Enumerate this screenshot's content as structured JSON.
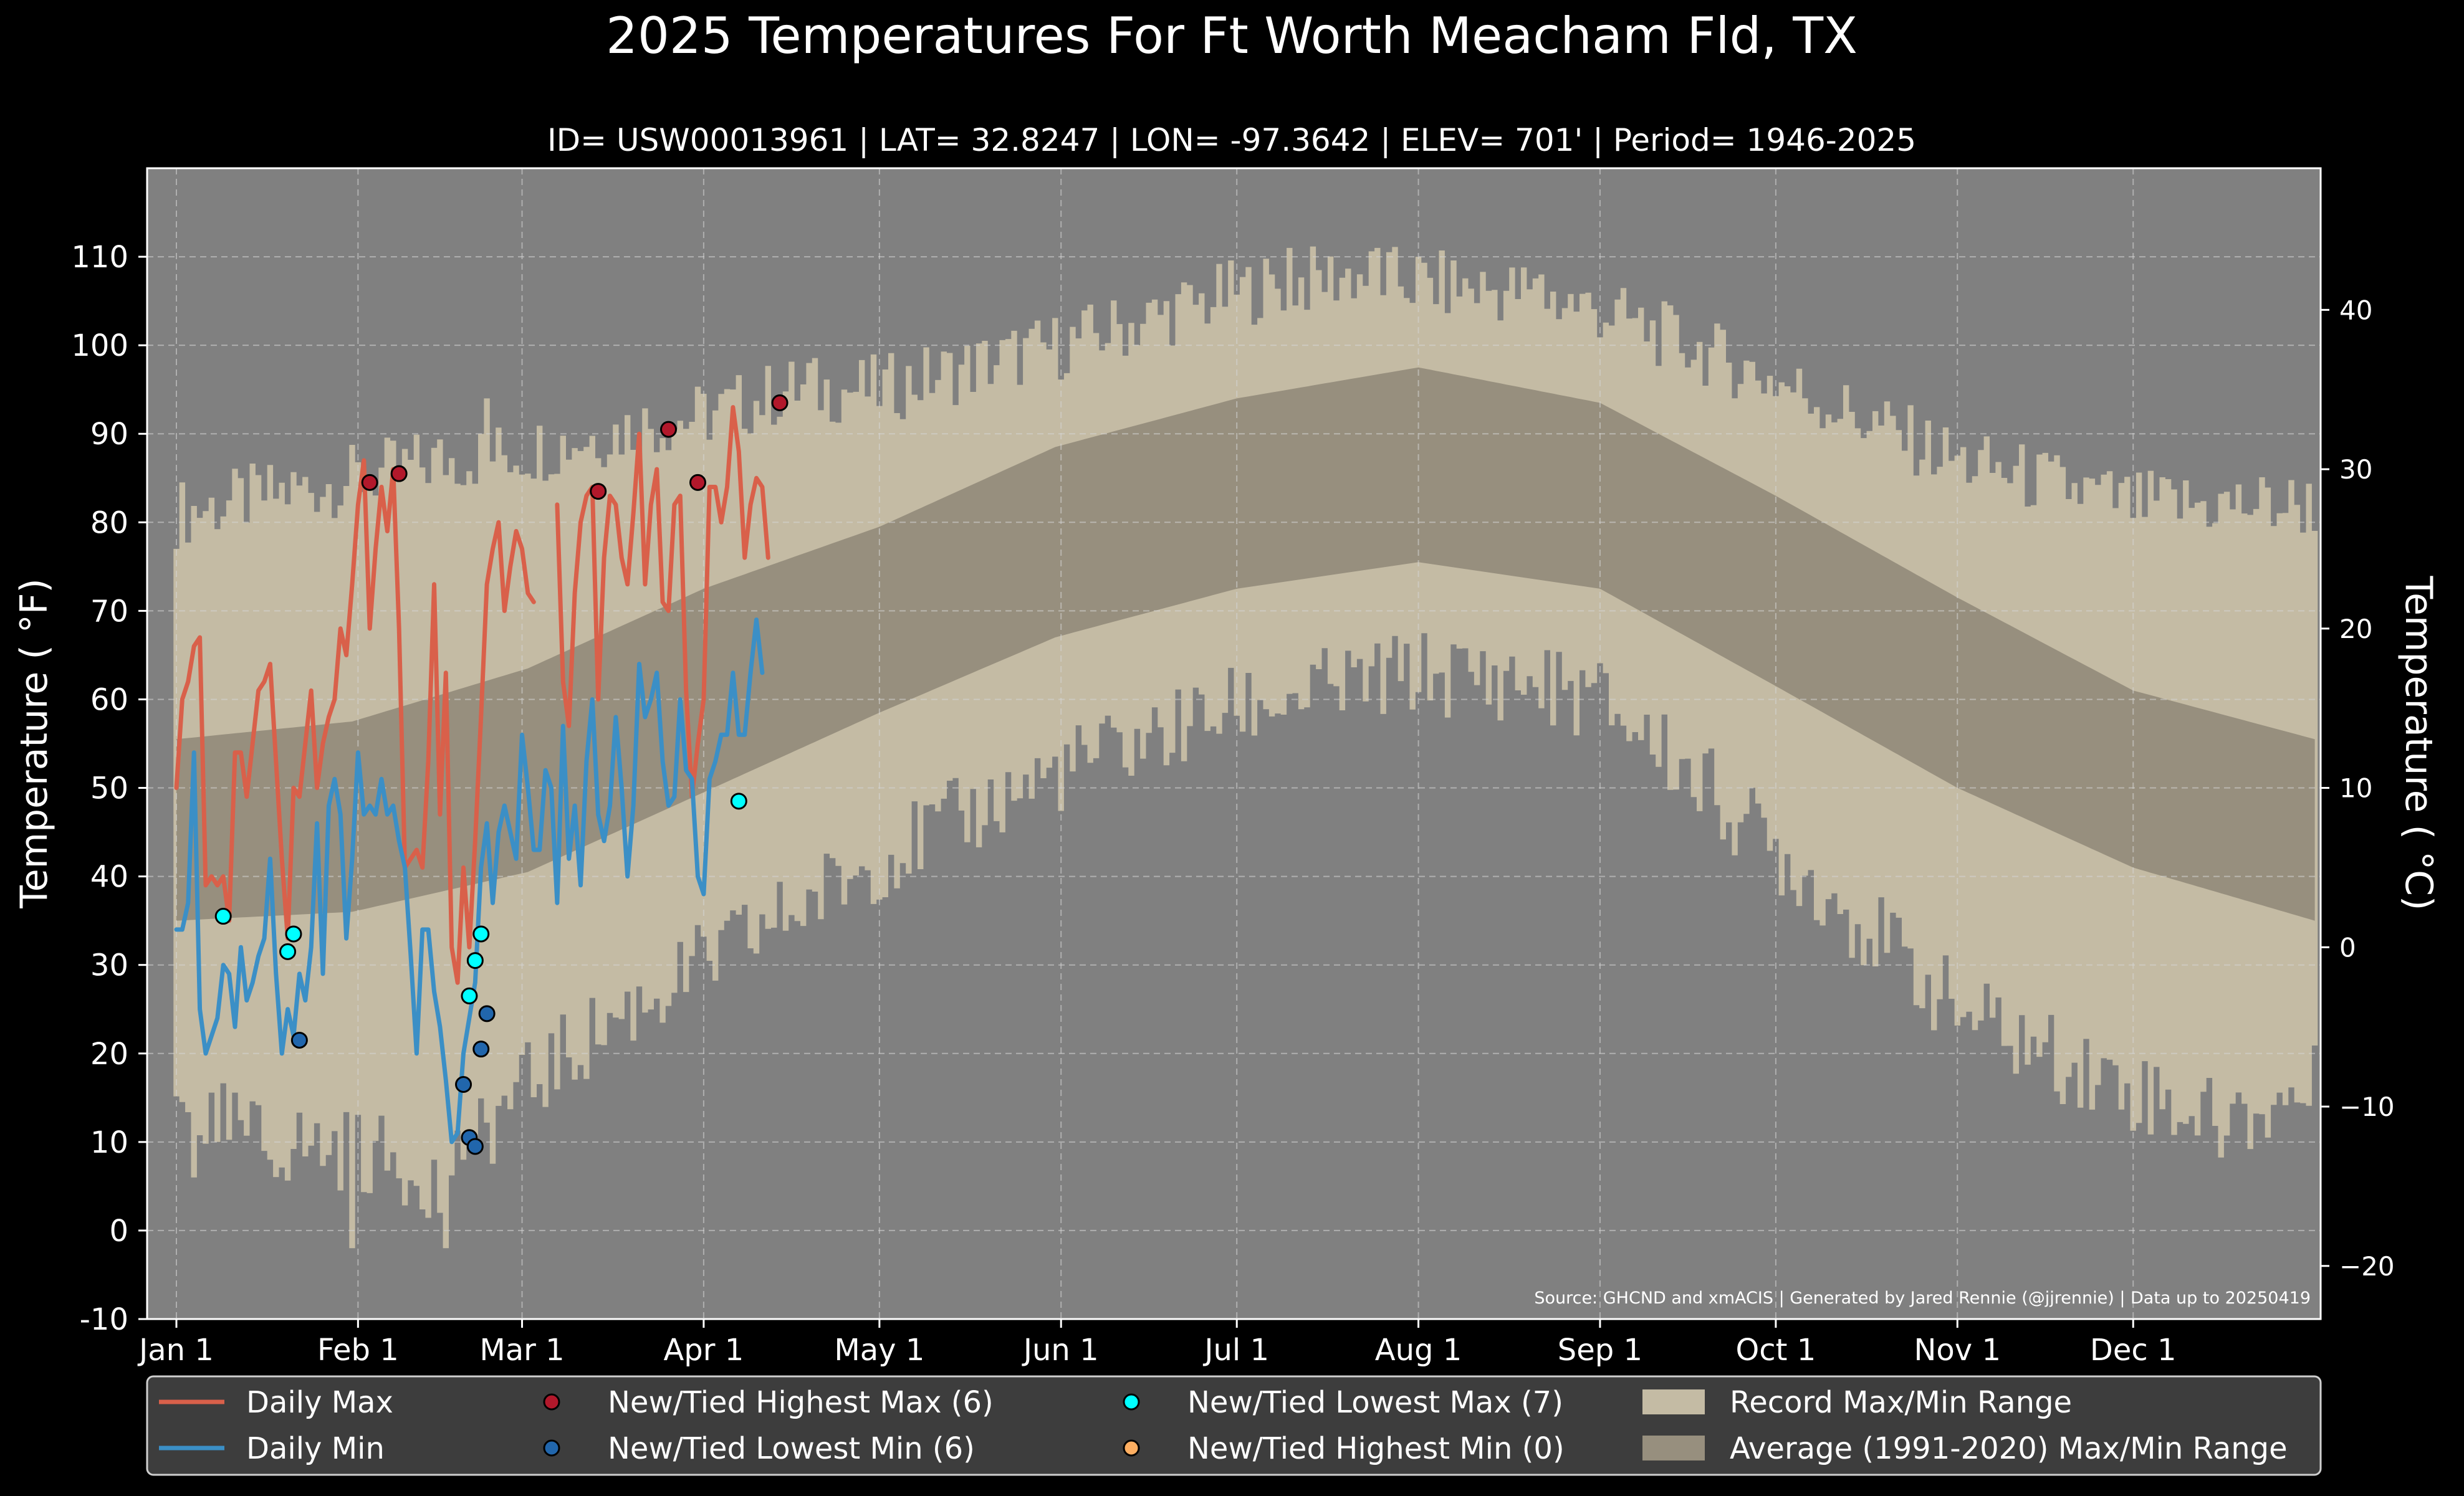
{
  "chart_data": {
    "type": "climate-band-line",
    "title": "2025 Temperatures For Ft Worth Meacham Fld, TX",
    "subtitle": "ID= USW00013961 | LAT= 32.8247 | LON= -97.3642 | ELEV= 701' | Period= 1946-2025",
    "ylabel": "Temperature ( $^\\circ$F)",
    "ylabel_text": "Temperature ( °F)",
    "y2label_text": "Temperature ( °C)",
    "ylim": [
      -10,
      120
    ],
    "y2lim_c": [
      -23.333,
      48.889
    ],
    "yticks": [
      -10,
      0,
      10,
      20,
      30,
      40,
      50,
      60,
      70,
      80,
      90,
      100,
      110
    ],
    "y2ticks": [
      -20,
      -10,
      0,
      10,
      20,
      30,
      40
    ],
    "y2tick_labels": [
      "−20",
      "−10",
      "0",
      "10",
      "20",
      "30",
      "40"
    ],
    "xlim_day": [
      -5,
      366
    ],
    "xticks": [
      {
        "day": 0,
        "label": "Jan 1"
      },
      {
        "day": 31,
        "label": "Feb 1"
      },
      {
        "day": 59,
        "label": "Mar 1"
      },
      {
        "day": 90,
        "label": "Apr 1"
      },
      {
        "day": 120,
        "label": "May 1"
      },
      {
        "day": 151,
        "label": "Jun 1"
      },
      {
        "day": 181,
        "label": "Jul 1"
      },
      {
        "day": 212,
        "label": "Aug 1"
      },
      {
        "day": 243,
        "label": "Sep 1"
      },
      {
        "day": 273,
        "label": "Oct 1"
      },
      {
        "day": 304,
        "label": "Nov 1"
      },
      {
        "day": 334,
        "label": "Dec 1"
      }
    ],
    "grid": true,
    "legend_position": "bottom",
    "source_note": "Source: GHCND and xmACIS | Generated by Jared Rennie (@jjrennie) | Data up to 20250419",
    "colors": {
      "background": "#808080",
      "record_band": "#c4bba4",
      "normal_band": "#978f7e",
      "daily_max": "#d9604a",
      "daily_min": "#3b8fc6",
      "highest_max": "#b2182b",
      "lowest_min": "#2166ac",
      "lowest_max": "#00ffff",
      "highest_min": "#fdae61"
    },
    "normal_band": {
      "min_anchors": [
        [
          0,
          35
        ],
        [
          30,
          36
        ],
        [
          60,
          40.5
        ],
        [
          90,
          49.5
        ],
        [
          120,
          58.5
        ],
        [
          150,
          67
        ],
        [
          181,
          72.5
        ],
        [
          212,
          75.5
        ],
        [
          243,
          72.5
        ],
        [
          273,
          61.5
        ],
        [
          304,
          50
        ],
        [
          334,
          41
        ],
        [
          365,
          35
        ]
      ],
      "max_anchors": [
        [
          0,
          55.5
        ],
        [
          30,
          57.5
        ],
        [
          60,
          63.5
        ],
        [
          90,
          72.5
        ],
        [
          120,
          79.5
        ],
        [
          150,
          88.5
        ],
        [
          181,
          94
        ],
        [
          212,
          97.5
        ],
        [
          243,
          93.5
        ],
        [
          273,
          83
        ],
        [
          304,
          71.5
        ],
        [
          334,
          61
        ],
        [
          365,
          55.5
        ]
      ]
    },
    "record_band": {
      "max_anchors": [
        [
          0,
          81
        ],
        [
          31,
          85
        ],
        [
          45,
          87
        ],
        [
          59,
          88
        ],
        [
          80,
          91
        ],
        [
          90,
          92
        ],
        [
          105,
          95
        ],
        [
          120,
          95
        ],
        [
          151,
          100
        ],
        [
          181,
          106
        ],
        [
          200,
          108
        ],
        [
          212,
          107
        ],
        [
          230,
          106
        ],
        [
          243,
          104
        ],
        [
          273,
          96
        ],
        [
          304,
          87
        ],
        [
          334,
          82
        ],
        [
          365,
          82
        ]
      ],
      "min_anchors": [
        [
          0,
          14
        ],
        [
          15,
          10
        ],
        [
          31,
          9
        ],
        [
          45,
          6
        ],
        [
          59,
          16
        ],
        [
          75,
          24
        ],
        [
          90,
          30
        ],
        [
          105,
          36
        ],
        [
          120,
          42
        ],
        [
          151,
          52
        ],
        [
          181,
          59
        ],
        [
          212,
          63
        ],
        [
          230,
          62
        ],
        [
          243,
          60
        ],
        [
          258,
          52
        ],
        [
          273,
          43
        ],
        [
          289,
          34
        ],
        [
          304,
          25
        ],
        [
          319,
          20
        ],
        [
          334,
          16
        ],
        [
          350,
          12
        ],
        [
          365,
          16
        ]
      ],
      "min_dips": [
        [
          3,
          6
        ],
        [
          7,
          10
        ],
        [
          16,
          8
        ],
        [
          30,
          -2
        ],
        [
          46,
          -2
        ],
        [
          45,
          2
        ],
        [
          44,
          8
        ],
        [
          49,
          8
        ],
        [
          51,
          10
        ]
      ],
      "max_peaks": [
        [
          53,
          94
        ],
        [
          108,
          98
        ],
        [
          187,
          108
        ],
        [
          190,
          111
        ],
        [
          205,
          111
        ],
        [
          212,
          110
        ],
        [
          233,
          108
        ]
      ]
    },
    "series": [
      {
        "name": "Daily Max",
        "start_day": 0,
        "values": [
          50,
          60,
          62,
          66,
          67,
          39,
          40,
          39,
          40,
          35,
          54,
          54,
          49,
          55,
          61,
          62,
          64,
          53,
          42,
          33,
          50,
          49,
          55,
          61,
          50,
          55,
          58,
          60,
          68,
          65,
          73,
          82,
          87,
          68,
          77,
          84,
          79,
          86,
          68,
          41,
          42,
          43,
          41,
          53,
          73,
          47,
          63,
          32,
          28,
          41,
          32,
          44,
          58,
          73,
          77,
          80,
          70,
          75,
          79,
          77,
          72,
          71,
          null,
          null,
          null,
          82,
          62,
          57,
          72,
          80,
          83,
          84,
          60,
          76,
          83,
          82,
          76,
          73,
          81,
          90,
          73,
          82,
          86,
          71,
          70,
          82,
          83,
          61,
          49,
          55,
          60,
          84,
          84,
          80,
          84,
          93,
          88,
          76,
          82,
          85,
          84,
          76
        ],
        "breaks_after": [
          61
        ]
      },
      {
        "name": "Daily Min",
        "start_day": 0,
        "values": [
          34,
          34,
          37,
          54,
          25,
          20,
          22,
          24,
          30,
          29,
          23,
          32,
          26,
          28,
          31,
          33,
          42,
          29,
          20,
          25,
          22,
          29,
          26,
          32,
          46,
          29,
          48,
          51,
          47,
          33,
          42,
          54,
          47,
          48,
          47,
          51,
          47,
          48,
          44,
          41,
          31,
          20,
          34,
          34,
          27,
          23,
          17,
          10,
          11,
          20,
          24,
          28,
          41,
          46,
          37,
          45,
          48,
          45,
          42,
          56,
          50,
          43,
          43,
          52,
          50,
          37,
          57,
          42,
          48,
          39,
          53,
          60,
          47,
          44,
          48,
          58,
          50,
          40,
          48,
          64,
          58,
          60,
          63,
          53,
          48,
          49,
          60,
          52,
          51,
          40,
          38,
          51,
          53,
          56,
          56,
          63,
          56,
          56,
          63,
          69,
          63
        ],
        "breaks_after": []
      }
    ],
    "markers": [
      {
        "name": "New/Tied Highest Max (6)",
        "type": "highest_max",
        "points": [
          [
            33,
            84.5
          ],
          [
            38,
            85.5
          ],
          [
            72,
            83.5
          ],
          [
            84,
            90.5
          ],
          [
            89,
            84.5
          ],
          [
            103,
            93.5
          ]
        ]
      },
      {
        "name": "New/Tied Lowest Min (6)",
        "type": "lowest_min",
        "points": [
          [
            21,
            21.5
          ],
          [
            49,
            16.5
          ],
          [
            50,
            10.5
          ],
          [
            51,
            9.5
          ],
          [
            52,
            20.5
          ],
          [
            53,
            24.5
          ]
        ]
      },
      {
        "name": "New/Tied Lowest Max (7)",
        "type": "lowest_max",
        "points": [
          [
            8,
            35.5
          ],
          [
            19,
            31.5
          ],
          [
            20,
            33.5
          ],
          [
            50,
            26.5
          ],
          [
            51,
            30.5
          ],
          [
            52,
            33.5
          ],
          [
            96,
            48.5
          ]
        ]
      },
      {
        "name": "New/Tied Highest Min (0)",
        "type": "highest_min",
        "points": []
      }
    ],
    "legend": [
      {
        "label": "Daily Max",
        "kind": "line",
        "color": "#d9604a"
      },
      {
        "label": "Daily Min",
        "kind": "line",
        "color": "#3b8fc6"
      },
      {
        "label": "New/Tied Highest Max (6)",
        "kind": "marker",
        "color": "#b2182b"
      },
      {
        "label": "New/Tied Lowest Min (6)",
        "kind": "marker",
        "color": "#2166ac"
      },
      {
        "label": "New/Tied Lowest Max (7)",
        "kind": "marker",
        "color": "#00ffff"
      },
      {
        "label": "New/Tied Highest Min (0)",
        "kind": "marker",
        "color": "#fdae61"
      },
      {
        "label": "Record Max/Min Range",
        "kind": "patch",
        "color": "#c4bba4"
      },
      {
        "label": "Average (1991-2020) Max/Min Range",
        "kind": "patch",
        "color": "#978f7e"
      }
    ]
  }
}
